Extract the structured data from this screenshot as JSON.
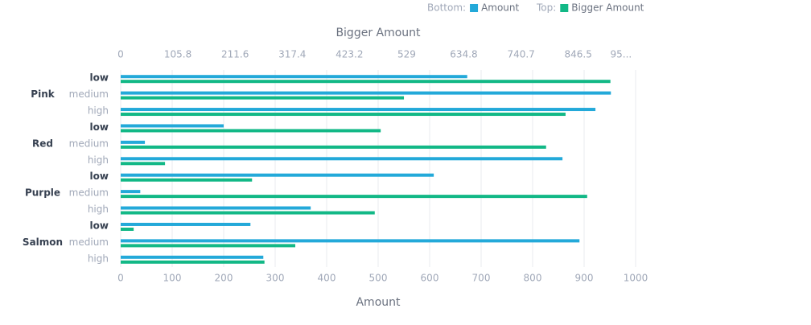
{
  "chart_data": {
    "type": "bar",
    "orientation": "horizontal",
    "groups": [
      "Pink",
      "Red",
      "Purple",
      "Salmon"
    ],
    "categories": [
      "low",
      "medium",
      "high",
      "low",
      "medium",
      "high",
      "low",
      "medium",
      "high",
      "low",
      "medium",
      "high"
    ],
    "xlabel": "Amount",
    "x2label": "Bigger Amount",
    "xlim": [
      0,
      1000
    ],
    "xticks": [
      0,
      100,
      200,
      300,
      400,
      500,
      600,
      700,
      800,
      900,
      1000
    ],
    "x2lim": [
      0,
      952.6
    ],
    "x2ticks": [
      0,
      105.8,
      211.6,
      317.4,
      423.2,
      529,
      634.8,
      740.7,
      846.5,
      {
        "value": 952.4,
        "label": "95..."
      }
    ],
    "grid": true,
    "series": [
      {
        "name": "Amount",
        "legend_prefix": "Bottom:",
        "axis": "x",
        "color": "#23a9d9",
        "values": [
          673,
          952,
          922,
          200,
          47,
          858,
          608,
          38,
          369,
          252,
          891,
          277
        ]
      },
      {
        "name": "Bigger Amount",
        "legend_prefix": "Top:",
        "axis": "x2",
        "color": "#12b886",
        "values": [
          906,
          524,
          823,
          481,
          787,
          82,
          243,
          863,
          470,
          24,
          323,
          266
        ]
      }
    ]
  }
}
